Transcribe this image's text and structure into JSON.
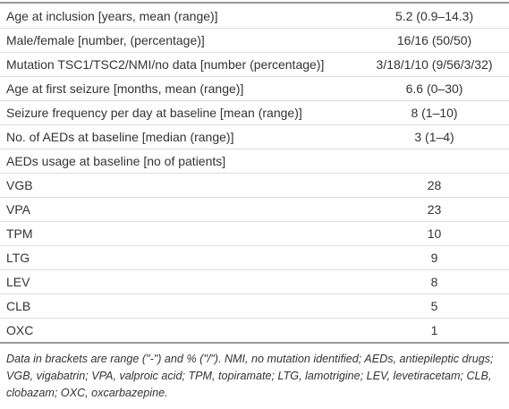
{
  "table": {
    "rows": [
      [
        "Age at inclusion [years, mean (range)]",
        "5.2 (0.9–14.3)"
      ],
      [
        "Male/female [number, (percentage)]",
        "16/16 (50/50)"
      ],
      [
        "Mutation TSC1/TSC2/NMI/no data [number (percentage)]",
        "3/18/1/10 (9/56/3/32)"
      ],
      [
        "Age at first seizure [months, mean (range)]",
        "6.6 (0–30)"
      ],
      [
        "Seizure frequency per day at baseline [mean (range)]",
        "8 (1–10)"
      ],
      [
        "No. of AEDs at baseline [median (range)]",
        "3 (1–4)"
      ],
      [
        "AEDs usage at baseline [no of patients]"
      ],
      [
        "VGB",
        "28"
      ],
      [
        "VPA",
        "23"
      ],
      [
        "TPM",
        "10"
      ],
      [
        "LTG",
        "9"
      ],
      [
        "LEV",
        "8"
      ],
      [
        "CLB",
        "5"
      ],
      [
        "OXC",
        "1"
      ]
    ]
  },
  "footnote": "Data in brackets are range (\"-\") and % (\"/\"). NMI, no mutation identified; AEDs, antiepileptic drugs; VGB, vigabatrin; VPA, valproic acid; TPM, topiramate; LTG, lamotrigine; LEV, levetiracetam; CLB, clobazam; OXC, oxcarbazepine."
}
